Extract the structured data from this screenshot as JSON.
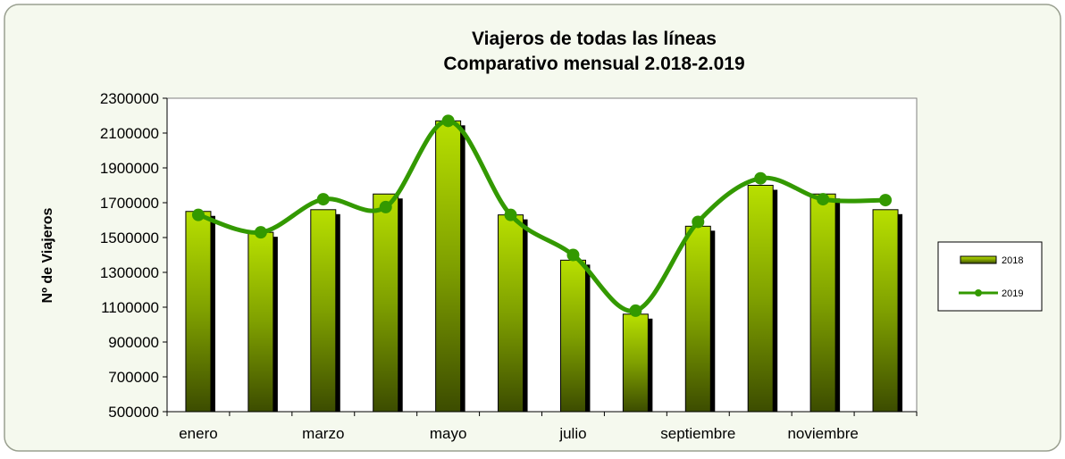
{
  "chart_data": {
    "type": "bar",
    "title": "Viajeros de todas las líneas",
    "subtitle": "Comparativo mensual 2.018-2.019",
    "y_label": "Nº de Viajeros",
    "categories": [
      "enero",
      null,
      "marzo",
      null,
      "mayo",
      null,
      "julio",
      null,
      "septiembre",
      null,
      "noviembre",
      null
    ],
    "series": [
      {
        "name": "2018",
        "type": "bar",
        "color": "#99cc00",
        "values": [
          1650000,
          1530000,
          1660000,
          1750000,
          2170000,
          1630000,
          1370000,
          1060000,
          1565000,
          1800000,
          1750000,
          1660000
        ]
      },
      {
        "name": "2019",
        "type": "line",
        "color": "#339900",
        "values": [
          1630000,
          1530000,
          1720000,
          1675000,
          2170000,
          1630000,
          1400000,
          1080000,
          1590000,
          1840000,
          1720000,
          1715000
        ]
      }
    ],
    "ylim": [
      500000,
      2300000
    ],
    "yticks": [
      500000,
      700000,
      900000,
      1100000,
      1300000,
      1500000,
      1700000,
      1900000,
      2100000,
      2300000
    ],
    "legend": "right"
  }
}
